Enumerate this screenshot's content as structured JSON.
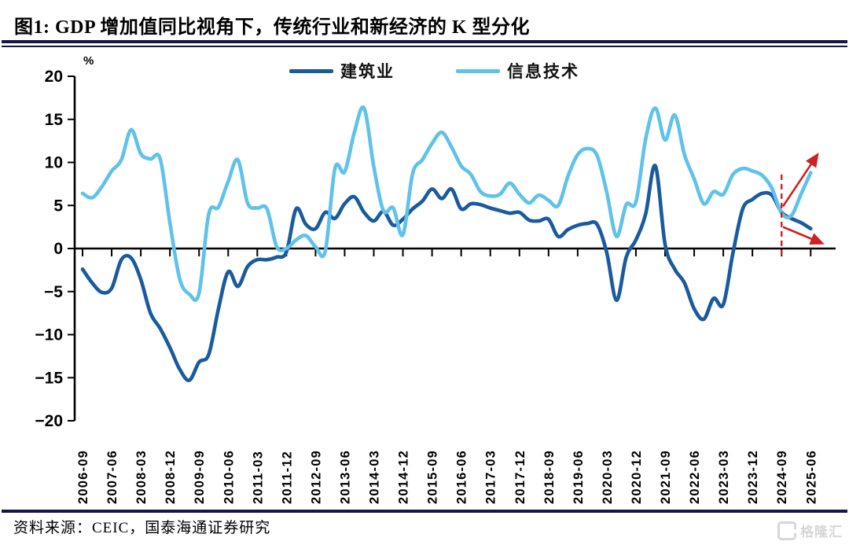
{
  "figure": {
    "title": "图1:  GDP 增加值同比视角下，传统行业和新经济的 K 型分化",
    "source": "资料来源：CEIC，国泰海通证券研究",
    "watermark": "格隆汇",
    "unit_label": "%"
  },
  "colors": {
    "construction": "#1a5a9e",
    "info_tech": "#5fc2ea",
    "annotation_red": "#cc2222",
    "axis": "#000000",
    "title_rule": "#15154a",
    "watermark_gray": "#d7d7d7"
  },
  "chart_data": {
    "type": "line",
    "unit": "%",
    "grid": false,
    "legend_position": "top",
    "ylim": [
      -20,
      20
    ],
    "y_ticks": [
      20,
      15,
      10,
      5,
      0,
      -5,
      -10,
      -15,
      -20
    ],
    "y_tick_labels": [
      "20",
      "15",
      "10",
      "5",
      "0",
      "−5",
      "−10",
      "−15",
      "−20"
    ],
    "categories": [
      "2006-09",
      "2006-12",
      "2007-03",
      "2007-06",
      "2007-09",
      "2007-12",
      "2008-03",
      "2008-06",
      "2008-09",
      "2008-12",
      "2009-03",
      "2009-06",
      "2009-09",
      "2009-12",
      "2010-03",
      "2010-06",
      "2010-09",
      "2010-12",
      "2011-03",
      "2011-06",
      "2011-09",
      "2011-12",
      "2012-03",
      "2012-06",
      "2012-09",
      "2012-12",
      "2013-03",
      "2013-06",
      "2013-09",
      "2013-12",
      "2014-03",
      "2014-06",
      "2014-09",
      "2014-12",
      "2015-03",
      "2015-06",
      "2015-09",
      "2015-12",
      "2016-03",
      "2016-06",
      "2016-09",
      "2016-12",
      "2017-03",
      "2017-06",
      "2017-09",
      "2017-12",
      "2018-03",
      "2018-06",
      "2018-09",
      "2018-12",
      "2019-03",
      "2019-06",
      "2019-09",
      "2019-12",
      "2020-03",
      "2020-06",
      "2020-09",
      "2020-12",
      "2021-03",
      "2021-06",
      "2021-09",
      "2021-12",
      "2022-03",
      "2022-06",
      "2022-09",
      "2022-12",
      "2023-03",
      "2023-06",
      "2023-09",
      "2023-12",
      "2024-03",
      "2024-06",
      "2024-09",
      "2024-12",
      "2025-03",
      "2025-06"
    ],
    "x_tick_labels": [
      "2006-09",
      "2007-06",
      "2008-03",
      "2008-12",
      "2009-09",
      "2010-06",
      "2011-03",
      "2011-12",
      "2012-09",
      "2013-06",
      "2014-03",
      "2014-12",
      "2015-09",
      "2016-06",
      "2017-03",
      "2017-12",
      "2018-09",
      "2019-06",
      "2020-03",
      "2020-12",
      "2021-09",
      "2022-06",
      "2023-03",
      "2023-12",
      "2024-09",
      "2025-06"
    ],
    "x_tick_every": 3,
    "series": [
      {
        "name": "建筑业",
        "color": "#1a5a9e",
        "values": [
          -2.4,
          -4.0,
          -5.1,
          -4.6,
          -1.3,
          -1.1,
          -3.6,
          -7.5,
          -9.3,
          -11.5,
          -14.0,
          -15.3,
          -13.2,
          -12.3,
          -7.0,
          -2.7,
          -4.4,
          -2.1,
          -1.3,
          -1.3,
          -1.0,
          -0.4,
          4.6,
          2.8,
          2.3,
          4.2,
          3.5,
          5.2,
          6.0,
          4.2,
          3.2,
          4.3,
          2.7,
          3.4,
          4.6,
          5.5,
          6.9,
          5.8,
          6.9,
          4.6,
          5.2,
          5.1,
          4.7,
          4.4,
          4.1,
          4.2,
          3.3,
          3.2,
          3.4,
          1.4,
          2.2,
          2.7,
          2.9,
          2.8,
          -0.5,
          -6.0,
          -1.0,
          1.0,
          4.0,
          9.6,
          0.5,
          -2.4,
          -4.0,
          -7.0,
          -8.2,
          -5.8,
          -6.5,
          -0.5,
          4.6,
          5.7,
          6.4,
          6.2,
          4.2,
          3.5,
          3.0,
          2.3
        ]
      },
      {
        "name": "信息技术",
        "color": "#5fc2ea",
        "values": [
          6.4,
          5.9,
          7.2,
          9.0,
          10.3,
          13.8,
          11.0,
          10.4,
          10.4,
          3.0,
          -3.5,
          -5.3,
          -5.2,
          4.0,
          4.8,
          7.8,
          10.3,
          5.3,
          4.7,
          4.6,
          0.2,
          0.0,
          1.0,
          1.5,
          0.2,
          -0.3,
          9.3,
          8.9,
          13.5,
          16.3,
          9.5,
          4.4,
          4.7,
          1.6,
          8.7,
          10.3,
          12.2,
          13.5,
          11.8,
          9.6,
          8.6,
          6.6,
          6.1,
          6.3,
          7.6,
          6.3,
          5.3,
          6.2,
          5.6,
          5.0,
          8.4,
          10.9,
          11.6,
          10.8,
          6.5,
          1.4,
          5.1,
          5.4,
          12.7,
          16.3,
          12.6,
          15.5,
          10.9,
          8.1,
          5.2,
          6.6,
          6.3,
          8.6,
          9.3,
          9.0,
          8.5,
          7.0,
          4.1,
          3.8,
          6.3,
          8.8
        ]
      }
    ],
    "annotations": {
      "dashed_vline": {
        "x_index": 72,
        "y_from": -1.0,
        "y_to": 8.6,
        "color": "#cc2222"
      },
      "arrow_up": {
        "x1_index": 72.15,
        "y1": 4.9,
        "x2_index": 75.7,
        "y2": 10.9,
        "color": "#cc2222"
      },
      "arrow_down": {
        "x1_index": 72.15,
        "y1": 2.5,
        "x2_index": 76.2,
        "y2": 0.6,
        "color": "#cc2222"
      }
    }
  }
}
